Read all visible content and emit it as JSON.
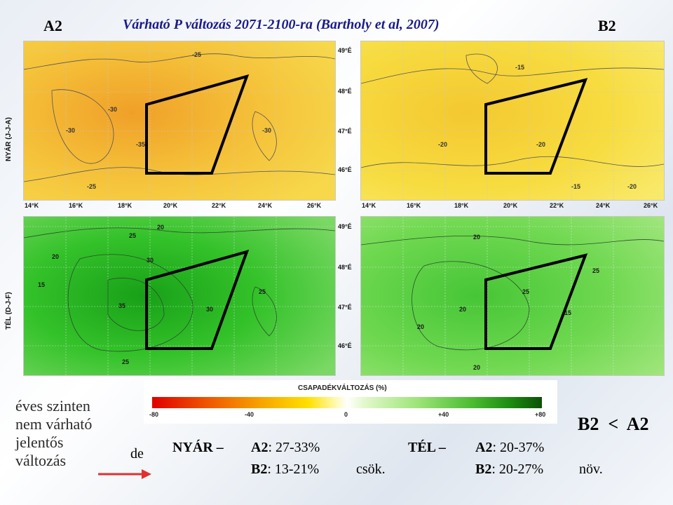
{
  "header": {
    "left_tag": "A2",
    "title": "Várható P változás 2071-2100-ra (Bartholy et al, 2007)",
    "right_tag": "B2"
  },
  "rows": {
    "summer_label": "NYÁR (J-J-A)",
    "winter_label": "TÉL (D-J-F)"
  },
  "axes": {
    "longitudes": [
      "14°K",
      "16°K",
      "18°K",
      "20°K",
      "22°K",
      "24°K",
      "26°K"
    ],
    "latitudes": [
      "49°É",
      "48°É",
      "47°É",
      "46°É"
    ]
  },
  "legend": {
    "title": "CSAPADÉKVÁLTOZÁS (%)",
    "ticks": [
      "-80",
      "-40",
      "0",
      "+40",
      "+80"
    ],
    "colors": [
      "#e60000",
      "#f04a00",
      "#f79a00",
      "#ffd200",
      "#fff480",
      "#ffffff",
      "#c8f0a0",
      "#7fd45a",
      "#3fb02a",
      "#1f8a12",
      "#0f5a08"
    ]
  },
  "left_text": {
    "line1": "éves szinten",
    "line2": "nem várható",
    "line3": "jelentős",
    "line4": "változás",
    "de": "de"
  },
  "summary": {
    "nyar_label": "NYÁR –",
    "a2_label": "A2",
    "nyar_a2_val": ": 27-33%",
    "b2_label": "B2",
    "nyar_b2_val": ": 13-21%",
    "csok": "csök.",
    "tel_label": "TÉL –",
    "tel_a2_val": ": 20-37%",
    "tel_b2_val": ": 20-27%",
    "nov": "növ.",
    "compare": "B2  <  A2"
  },
  "map_contours": {
    "summer_a2": [
      "-25",
      "-30",
      "-35",
      "-30",
      "-30",
      "-25"
    ],
    "summer_b2": [
      "-15",
      "-20",
      "-20",
      "-15",
      "-20"
    ],
    "winter_a2": [
      "20",
      "25",
      "30",
      "35",
      "25",
      "30",
      "25",
      "20",
      "15"
    ],
    "winter_b2": [
      "20",
      "25",
      "15",
      "20",
      "25",
      "20",
      "20"
    ]
  },
  "colors": {
    "summer_fill_a2": "#f2b233",
    "summer_fill_b2": "#f8dc40",
    "winter_fill_a2": "#34c22a",
    "winter_fill_b2": "#6fd850",
    "title_color": "#1b1b8a",
    "arrow_color": "#e03030"
  }
}
